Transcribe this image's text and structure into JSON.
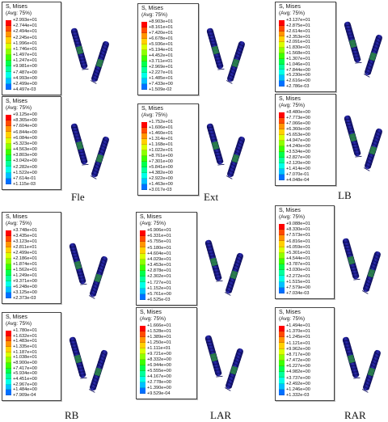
{
  "colors": [
    "#ff0000",
    "#ff4a00",
    "#ff9400",
    "#ffd000",
    "#d9ff00",
    "#8dff00",
    "#3cff00",
    "#00ff4c",
    "#00ff9c",
    "#00ffe8",
    "#00c0ff",
    "#0070ff",
    "#0000ff"
  ],
  "screw_colors": {
    "body": "#1a1a8c",
    "dark": "#0b0b55",
    "thread": "#2a2ab0",
    "green": "#2e9a3a"
  },
  "groups": [
    {
      "caption": "Fle",
      "panels": [
        {
          "title": "S, Mises",
          "subtitle": "(Avg: 75%)",
          "values": [
            "+2.993e+01",
            "+2.744e+01",
            "+2.494e+01",
            "+2.245e+01",
            "+1.996e+01",
            "+1.746e+01",
            "+1.497e+01",
            "+1.247e+01",
            "+9.981e+00",
            "+7.487e+00",
            "+4.993e+00",
            "+2.499e+00",
            "+4.497e-03"
          ]
        },
        {
          "title": "S, Mises",
          "subtitle": "(Avg: 75%)",
          "values": [
            "+9.125e+00",
            "+8.365e+00",
            "+7.604e+00",
            "+6.844e+00",
            "+6.084e+00",
            "+5.323e+00",
            "+4.563e+00",
            "+3.803e+00",
            "+3.042e+00",
            "+2.282e+00",
            "+1.522e+00",
            "+7.614e-01",
            "+1.115e-03"
          ]
        }
      ]
    },
    {
      "caption": "Ext",
      "panels": [
        {
          "title": "S, Mises",
          "subtitle": "(Avg: 75%)",
          "values": [
            "+8.903e+01",
            "+8.161e+01",
            "+7.420e+01",
            "+6.678e+01",
            "+5.936e+01",
            "+5.194e+01",
            "+4.452e+01",
            "+3.711e+01",
            "+2.969e+01",
            "+2.227e+01",
            "+1.485e+01",
            "+7.433e+00",
            "+1.509e-02"
          ]
        },
        {
          "title": "S, Mises",
          "subtitle": "(Avg: 75%)",
          "values": [
            "+1.752e+01",
            "+1.606e+01",
            "+1.460e+01",
            "+1.314e+01",
            "+1.168e+01",
            "+1.022e+01",
            "+8.761e+00",
            "+7.301e+00",
            "+5.841e+00",
            "+4.382e+00",
            "+2.922e+00",
            "+1.463e+00",
            "+3.017e-03"
          ]
        }
      ]
    },
    {
      "caption": "LB",
      "panels": [
        {
          "title": "S, Mises",
          "subtitle": "(Avg: 75%)",
          "values": [
            "+3.137e+01",
            "+2.875e+01",
            "+2.614e+01",
            "+2.353e+01",
            "+2.091e+01",
            "+1.830e+01",
            "+1.568e+01",
            "+1.307e+01",
            "+1.046e+01",
            "+7.844e+00",
            "+5.230e+00",
            "+2.616e+00",
            "+2.786e-03"
          ]
        },
        {
          "title": "S, Mises",
          "subtitle": "(Avg: 75%)",
          "values": [
            "+8.480e+00",
            "+7.773e+00",
            "+7.066e+00",
            "+6.360e+00",
            "+5.653e+00",
            "+4.947e+00",
            "+4.240e+00",
            "+3.534e+00",
            "+2.827e+00",
            "+2.120e+00",
            "+1.414e+00",
            "+7.070e-01",
            "+4.048e-04"
          ]
        }
      ]
    },
    {
      "caption": "RB",
      "panels": [
        {
          "title": "S, Mises",
          "subtitle": "(Avg: 75%)",
          "values": [
            "+3.748e+01",
            "+3.435e+01",
            "+3.123e+01",
            "+2.811e+01",
            "+2.499e+01",
            "+2.186e+01",
            "+1.874e+01",
            "+1.562e+01",
            "+1.249e+01",
            "+9.371e+00",
            "+6.248e+00",
            "+3.125e+00",
            "+2.373e-03"
          ]
        },
        {
          "title": "S, Mises",
          "subtitle": "(Avg: 75%)",
          "values": [
            "+1.780e+01",
            "+1.632e+01",
            "+1.483e+01",
            "+1.335e+01",
            "+1.187e+01",
            "+1.038e+01",
            "+8.900e+00",
            "+7.417e+00",
            "+5.934e+00",
            "+4.451e+00",
            "+2.967e+00",
            "+1.484e+00",
            "+7.909e-04"
          ]
        }
      ]
    },
    {
      "caption": "LAR",
      "panels": [
        {
          "title": "S, Mises",
          "subtitle": "(Avg: 75%)",
          "values": [
            "+6.906e+01",
            "+6.331e+01",
            "+5.755e+01",
            "+5.180e+01",
            "+4.604e+01",
            "+4.029e+01",
            "+3.453e+01",
            "+2.878e+01",
            "+2.302e+01",
            "+1.727e+01",
            "+1.152e+01",
            "+5.761e+00",
            "+6.525e-03"
          ]
        },
        {
          "title": "S, Mises",
          "subtitle": "(Avg: 75%)",
          "values": [
            "+1.666e+01",
            "+1.528e+01",
            "+1.389e+01",
            "+1.250e+01",
            "+1.111e+01",
            "+9.721e+00",
            "+8.332e+00",
            "+6.944e+00",
            "+5.555e+00",
            "+4.167e+00",
            "+2.778e+00",
            "+1.390e+00",
            "+9.529e-04"
          ]
        }
      ]
    },
    {
      "caption": "RAR",
      "panels": [
        {
          "title": "S, Mises",
          "subtitle": "(Avg: 75%)",
          "values": [
            "+9.088e+01",
            "+8.330e+01",
            "+7.573e+01",
            "+6.816e+01",
            "+6.059e+01",
            "+5.301e+01",
            "+4.544e+01",
            "+3.787e+01",
            "+3.030e+01",
            "+2.272e+01",
            "+1.515e+01",
            "+7.579e+00",
            "+7.034e-03"
          ]
        },
        {
          "title": "S, Mises",
          "subtitle": "(Avg: 75%)",
          "values": [
            "+1.494e+01",
            "+1.370e+01",
            "+1.245e+01",
            "+1.121e+01",
            "+9.962e+00",
            "+8.717e+00",
            "+7.472e+00",
            "+6.227e+00",
            "+4.982e+00",
            "+3.737e+00",
            "+2.492e+00",
            "+1.246e+00",
            "+1.332e-03"
          ]
        }
      ]
    }
  ]
}
